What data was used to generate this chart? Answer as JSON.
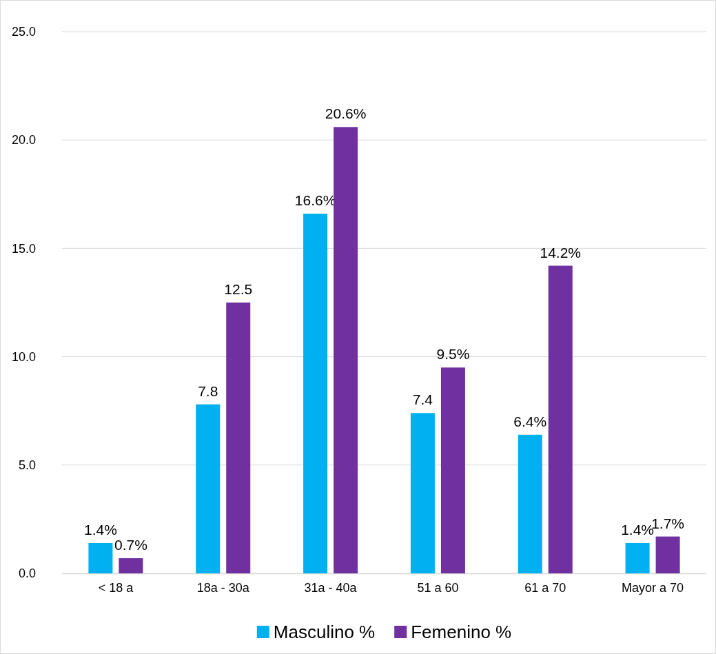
{
  "chart_data": {
    "type": "bar",
    "categories": [
      "< 18 a",
      "18a - 30a",
      "31a - 40a",
      "51 a 60",
      "61 a 70",
      "Mayor a 70"
    ],
    "series": [
      {
        "name": "Masculino %",
        "color": "#00b0f0",
        "values": [
          1.4,
          7.8,
          16.6,
          7.4,
          6.4,
          1.4
        ],
        "value_labels": [
          "1.4%",
          "7.8",
          "16.6%",
          "7.4",
          "6.4%",
          "1.4%"
        ]
      },
      {
        "name": "Femenino %",
        "color": "#7030a0",
        "values": [
          0.7,
          12.5,
          20.6,
          9.5,
          14.2,
          1.7
        ],
        "value_labels": [
          "0.7%",
          "12.5",
          "20.6%",
          "9.5%",
          "14.2%",
          "1.7%"
        ]
      }
    ],
    "ylim": [
      0,
      25
    ],
    "yticks": [
      {
        "value": 0,
        "label": "0.0"
      },
      {
        "value": 5,
        "label": "5.0"
      },
      {
        "value": 10,
        "label": "10.0"
      },
      {
        "value": 15,
        "label": "15.0"
      },
      {
        "value": 20,
        "label": "20.0"
      },
      {
        "value": 25,
        "label": "25.0"
      }
    ],
    "grid": "y",
    "legend": "bottom"
  }
}
